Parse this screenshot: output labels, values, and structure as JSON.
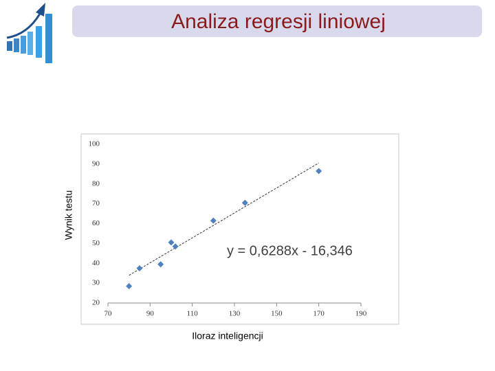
{
  "chart_data": {
    "type": "scatter",
    "title": "Analiza regresji liniowej",
    "x_label": "Iloraz inteligencji",
    "y_label": "Wynik testu",
    "x": [
      80,
      85,
      95,
      100,
      102,
      120,
      135,
      170
    ],
    "values": [
      28.5,
      37.5,
      39.5,
      50.5,
      48.5,
      61.5,
      70.5,
      86.5
    ],
    "color": "#4f81bd",
    "xlim": [
      70,
      190
    ],
    "xticks": [
      70,
      90,
      110,
      130,
      150,
      170,
      190
    ],
    "ylim": [
      20,
      100
    ],
    "yticks": [
      20,
      30,
      40,
      50,
      60,
      70,
      80,
      90,
      100
    ],
    "grid": false,
    "trendline": {
      "label": "y = 0,6288x - 16,346",
      "slope": 0.6288,
      "intercept": -16.346
    }
  }
}
